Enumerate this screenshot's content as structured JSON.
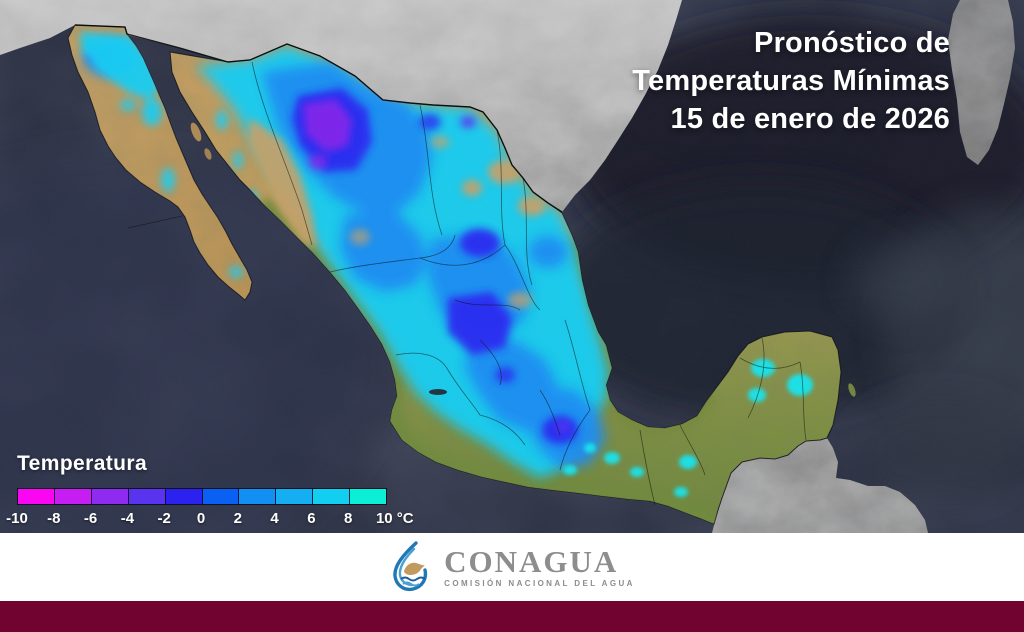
{
  "header": {
    "title_lines": [
      "Pronóstico de",
      "Temperaturas Mínimas",
      "15 de enero de 2026"
    ]
  },
  "legend": {
    "title": "Temperatura",
    "unit": "°C",
    "stops": [
      {
        "from": -10,
        "to": -8,
        "color": "#fb06f2"
      },
      {
        "from": -8,
        "to": -6,
        "color": "#c51df2"
      },
      {
        "from": -6,
        "to": -4,
        "color": "#8f2af0"
      },
      {
        "from": -4,
        "to": -2,
        "color": "#5a33ee"
      },
      {
        "from": -2,
        "to": 0,
        "color": "#2b22f0"
      },
      {
        "from": 0,
        "to": 2,
        "color": "#0a60f2"
      },
      {
        "from": 2,
        "to": 4,
        "color": "#128ff2"
      },
      {
        "from": 4,
        "to": 6,
        "color": "#16aef2"
      },
      {
        "from": 6,
        "to": 8,
        "color": "#12cef0"
      },
      {
        "from": 8,
        "to": 10,
        "color": "#0aefd6"
      }
    ],
    "tick_labels": [
      "-10",
      "-8",
      "-6",
      "-4",
      "-2",
      "0",
      "2",
      "4",
      "6",
      "8",
      "10 °C"
    ]
  },
  "footer": {
    "org": "CONAGUA",
    "subtitle": "COMISIÓN NACIONAL DEL AGUA"
  },
  "colors": {
    "ocean": "#272c3e",
    "gulf_deep": "#1b1f2b",
    "us_land_gray": "#a6a6a6",
    "mexico_desert_tan": "#c79e62",
    "mexico_green": "#74893e",
    "footer_bar": "#70032f",
    "title_text": "#ffffff",
    "logo_blue": "#2277b5",
    "logo_gray": "#8d8d8d"
  }
}
